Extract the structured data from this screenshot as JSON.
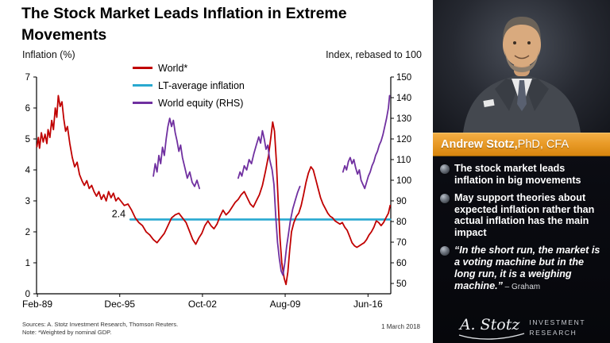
{
  "title": "The Stock Market Leads Inflation in Extreme Movements",
  "axis_labels": {
    "left": "Inflation (%)",
    "right": "Index, rebased to 100"
  },
  "legend": [
    {
      "label": "World*",
      "color": "#c00000"
    },
    {
      "label": "LT-average inflation",
      "color": "#29a9d0"
    },
    {
      "label": "World equity (RHS)",
      "color": "#7030a0"
    }
  ],
  "footer": {
    "sources": "Sources: A. Stotz Investment Research, Thomson Reuters.",
    "note": "Note: *Weighted by nominal GDP.",
    "date": "1 March 2018"
  },
  "sidebar": {
    "banner_name": "Andrew Stotz,",
    "banner_title": " PhD, CFA",
    "banner_color_top": "#f3ae45",
    "banner_color_bottom": "#d8860f",
    "bullets": [
      {
        "text": "The stock market leads inflation in big movements",
        "attribution": ""
      },
      {
        "text": "May support theories about expected inflation rather than actual inflation has the main impact",
        "attribution": ""
      },
      {
        "text": "“In the short run, the market is a voting machine but in the long run, it is a weighing machine.”",
        "attribution": " – Graham"
      }
    ],
    "logo": {
      "signature": "A. Stotz",
      "line1": "INVESTMENT",
      "line2": "RESEARCH"
    }
  },
  "chart_data": {
    "type": "line",
    "title": "The Stock Market Leads Inflation in Extreme Movements",
    "x_range": [
      1989.05,
      2018.3
    ],
    "x_ticks": [
      {
        "label": "Feb-89",
        "x": 1989.12
      },
      {
        "label": "Dec-95",
        "x": 1995.92
      },
      {
        "label": "Oct-02",
        "x": 2002.75
      },
      {
        "label": "Aug-09",
        "x": 2009.58
      },
      {
        "label": "Jun-16",
        "x": 2016.42
      }
    ],
    "left_axis": {
      "label": "Inflation (%)",
      "range": [
        0,
        7
      ],
      "ticks": [
        0,
        1,
        2,
        3,
        4,
        5,
        6,
        7
      ]
    },
    "right_axis": {
      "label": "Index, rebased to 100",
      "range": [
        45,
        150
      ],
      "ticks": [
        50,
        60,
        70,
        80,
        90,
        100,
        110,
        120,
        130,
        140,
        150
      ]
    },
    "annotation": {
      "text": "2.4",
      "x": 1996.6,
      "y": 2.4
    },
    "series": [
      {
        "name": "LT-average inflation",
        "axis": "left",
        "color": "#29a9d0",
        "width": 2.6,
        "segments": [
          [
            [
              1996.8,
              2.4
            ],
            [
              2018.25,
              2.4
            ]
          ]
        ]
      },
      {
        "name": "World*",
        "axis": "left",
        "color": "#c00000",
        "width": 1.8,
        "segments": [
          [
            [
              1989.08,
              4.75
            ],
            [
              1989.2,
              5.05
            ],
            [
              1989.3,
              4.7
            ],
            [
              1989.45,
              5.2
            ],
            [
              1989.6,
              4.9
            ],
            [
              1989.75,
              5.15
            ],
            [
              1989.9,
              4.85
            ],
            [
              1990.0,
              5.3
            ],
            [
              1990.15,
              5.05
            ],
            [
              1990.3,
              5.6
            ],
            [
              1990.45,
              5.3
            ],
            [
              1990.6,
              6.0
            ],
            [
              1990.72,
              5.7
            ],
            [
              1990.85,
              6.4
            ],
            [
              1991.0,
              6.05
            ],
            [
              1991.15,
              6.2
            ],
            [
              1991.3,
              5.65
            ],
            [
              1991.45,
              5.25
            ],
            [
              1991.6,
              5.4
            ],
            [
              1991.8,
              4.85
            ],
            [
              1992.0,
              4.4
            ],
            [
              1992.2,
              4.1
            ],
            [
              1992.4,
              4.25
            ],
            [
              1992.6,
              3.85
            ],
            [
              1992.8,
              3.65
            ],
            [
              1993.0,
              3.5
            ],
            [
              1993.2,
              3.65
            ],
            [
              1993.4,
              3.4
            ],
            [
              1993.6,
              3.5
            ],
            [
              1993.8,
              3.3
            ],
            [
              1994.0,
              3.15
            ],
            [
              1994.2,
              3.3
            ],
            [
              1994.4,
              3.05
            ],
            [
              1994.6,
              3.2
            ],
            [
              1994.8,
              3.0
            ],
            [
              1995.0,
              3.3
            ],
            [
              1995.2,
              3.1
            ],
            [
              1995.4,
              3.25
            ],
            [
              1995.6,
              3.0
            ],
            [
              1995.8,
              3.1
            ],
            [
              1996.0,
              3.0
            ],
            [
              1996.3,
              2.85
            ],
            [
              1996.6,
              2.9
            ],
            [
              1996.9,
              2.7
            ],
            [
              1997.2,
              2.45
            ],
            [
              1997.5,
              2.3
            ],
            [
              1997.8,
              2.2
            ],
            [
              1998.1,
              2.0
            ],
            [
              1998.4,
              1.9
            ],
            [
              1998.7,
              1.75
            ],
            [
              1999.0,
              1.65
            ],
            [
              1999.3,
              1.8
            ],
            [
              1999.6,
              1.95
            ],
            [
              1999.9,
              2.2
            ],
            [
              2000.2,
              2.45
            ],
            [
              2000.5,
              2.55
            ],
            [
              2000.8,
              2.6
            ],
            [
              2001.1,
              2.45
            ],
            [
              2001.4,
              2.3
            ],
            [
              2001.7,
              2.0
            ],
            [
              2001.95,
              1.75
            ],
            [
              2002.2,
              1.6
            ],
            [
              2002.45,
              1.8
            ],
            [
              2002.7,
              1.95
            ],
            [
              2002.95,
              2.2
            ],
            [
              2003.2,
              2.35
            ],
            [
              2003.45,
              2.2
            ],
            [
              2003.7,
              2.1
            ],
            [
              2003.95,
              2.25
            ],
            [
              2004.2,
              2.5
            ],
            [
              2004.45,
              2.7
            ],
            [
              2004.7,
              2.55
            ],
            [
              2004.95,
              2.65
            ],
            [
              2005.2,
              2.8
            ],
            [
              2005.45,
              2.95
            ],
            [
              2005.7,
              3.05
            ],
            [
              2005.95,
              3.2
            ],
            [
              2006.2,
              3.3
            ],
            [
              2006.45,
              3.1
            ],
            [
              2006.7,
              2.9
            ],
            [
              2006.95,
              2.8
            ],
            [
              2007.2,
              3.0
            ],
            [
              2007.45,
              3.2
            ],
            [
              2007.7,
              3.5
            ],
            [
              2007.95,
              3.95
            ],
            [
              2008.2,
              4.45
            ],
            [
              2008.4,
              5.05
            ],
            [
              2008.55,
              5.55
            ],
            [
              2008.7,
              5.25
            ],
            [
              2008.85,
              4.3
            ],
            [
              2009.0,
              3.0
            ],
            [
              2009.15,
              1.8
            ],
            [
              2009.3,
              1.0
            ],
            [
              2009.5,
              0.5
            ],
            [
              2009.65,
              0.3
            ],
            [
              2009.8,
              0.7
            ],
            [
              2009.95,
              1.4
            ],
            [
              2010.1,
              2.0
            ],
            [
              2010.3,
              2.3
            ],
            [
              2010.5,
              2.5
            ],
            [
              2010.7,
              2.6
            ],
            [
              2010.9,
              2.85
            ],
            [
              2011.1,
              3.2
            ],
            [
              2011.3,
              3.6
            ],
            [
              2011.5,
              3.9
            ],
            [
              2011.7,
              4.1
            ],
            [
              2011.9,
              4.0
            ],
            [
              2012.1,
              3.7
            ],
            [
              2012.3,
              3.4
            ],
            [
              2012.5,
              3.1
            ],
            [
              2012.7,
              2.9
            ],
            [
              2012.9,
              2.75
            ],
            [
              2013.1,
              2.6
            ],
            [
              2013.3,
              2.5
            ],
            [
              2013.5,
              2.45
            ],
            [
              2013.7,
              2.35
            ],
            [
              2013.9,
              2.3
            ],
            [
              2014.1,
              2.25
            ],
            [
              2014.3,
              2.3
            ],
            [
              2014.5,
              2.15
            ],
            [
              2014.7,
              2.05
            ],
            [
              2014.9,
              1.85
            ],
            [
              2015.1,
              1.65
            ],
            [
              2015.3,
              1.55
            ],
            [
              2015.5,
              1.5
            ],
            [
              2015.7,
              1.55
            ],
            [
              2015.9,
              1.6
            ],
            [
              2016.1,
              1.65
            ],
            [
              2016.3,
              1.75
            ],
            [
              2016.5,
              1.9
            ],
            [
              2016.7,
              2.0
            ],
            [
              2016.9,
              2.15
            ],
            [
              2017.1,
              2.35
            ],
            [
              2017.3,
              2.3
            ],
            [
              2017.5,
              2.2
            ],
            [
              2017.7,
              2.3
            ],
            [
              2017.9,
              2.45
            ],
            [
              2018.1,
              2.6
            ],
            [
              2018.25,
              2.85
            ]
          ]
        ]
      },
      {
        "name": "World equity (RHS)",
        "axis": "right",
        "color": "#7030a0",
        "width": 1.8,
        "segments": [
          [
            [
              1998.7,
              102
            ],
            [
              1998.85,
              108
            ],
            [
              1999.0,
              104
            ],
            [
              1999.15,
              112
            ],
            [
              1999.3,
              108
            ],
            [
              1999.45,
              116
            ],
            [
              1999.6,
              112
            ],
            [
              1999.75,
              120
            ],
            [
              1999.9,
              126
            ],
            [
              2000.05,
              130
            ],
            [
              2000.2,
              126
            ],
            [
              2000.35,
              129
            ],
            [
              2000.5,
              123
            ],
            [
              2000.65,
              119
            ],
            [
              2000.8,
              114
            ],
            [
              2000.95,
              117
            ],
            [
              2001.1,
              111
            ],
            [
              2001.3,
              106
            ],
            [
              2001.5,
              101
            ],
            [
              2001.7,
              104
            ],
            [
              2001.9,
              99
            ],
            [
              2002.1,
              97
            ],
            [
              2002.3,
              100
            ],
            [
              2002.5,
              96
            ]
          ],
          [
            [
              2005.7,
              101
            ],
            [
              2005.85,
              104
            ],
            [
              2006.0,
              102
            ],
            [
              2006.2,
              107
            ],
            [
              2006.4,
              105
            ],
            [
              2006.6,
              110
            ],
            [
              2006.8,
              108
            ],
            [
              2007.0,
              113
            ],
            [
              2007.2,
              117
            ],
            [
              2007.4,
              121
            ],
            [
              2007.55,
              118
            ],
            [
              2007.7,
              124
            ],
            [
              2007.85,
              120
            ],
            [
              2008.0,
              115
            ],
            [
              2008.15,
              117
            ],
            [
              2008.3,
              110
            ],
            [
              2008.5,
              105
            ],
            [
              2008.65,
              98
            ],
            [
              2008.8,
              83
            ],
            [
              2008.95,
              70
            ],
            [
              2009.1,
              62
            ],
            [
              2009.25,
              56
            ],
            [
              2009.4,
              54
            ],
            [
              2009.55,
              60
            ],
            [
              2009.7,
              68
            ],
            [
              2009.85,
              74
            ],
            [
              2010.0,
              80
            ],
            [
              2010.2,
              86
            ],
            [
              2010.4,
              90
            ],
            [
              2010.6,
              94
            ],
            [
              2010.8,
              97
            ]
          ],
          [
            [
              2014.35,
              104
            ],
            [
              2014.5,
              107
            ],
            [
              2014.65,
              105
            ],
            [
              2014.8,
              109
            ],
            [
              2014.95,
              111
            ],
            [
              2015.1,
              108
            ],
            [
              2015.25,
              110
            ],
            [
              2015.4,
              106
            ],
            [
              2015.55,
              103
            ],
            [
              2015.7,
              105
            ],
            [
              2015.85,
              100
            ],
            [
              2016.0,
              98
            ],
            [
              2016.15,
              96
            ],
            [
              2016.3,
              99
            ],
            [
              2016.45,
              102
            ],
            [
              2016.6,
              104
            ],
            [
              2016.75,
              107
            ],
            [
              2016.9,
              109
            ],
            [
              2017.05,
              112
            ],
            [
              2017.2,
              114
            ],
            [
              2017.35,
              117
            ],
            [
              2017.5,
              119
            ],
            [
              2017.65,
              122
            ],
            [
              2017.8,
              126
            ],
            [
              2017.95,
              130
            ],
            [
              2018.1,
              135
            ],
            [
              2018.2,
              141
            ]
          ]
        ]
      }
    ]
  }
}
